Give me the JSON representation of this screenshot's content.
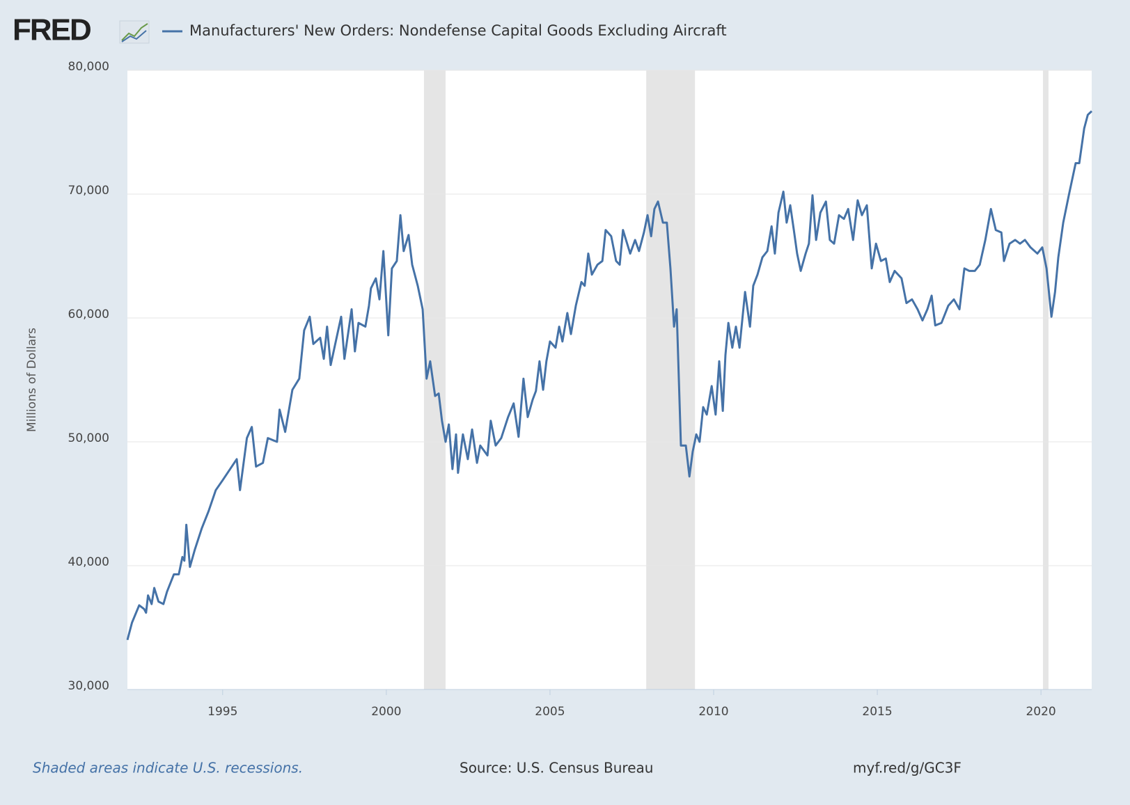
{
  "chart_data": {
    "type": "line",
    "logo": "FRED",
    "y_label": "Millions of Dollars",
    "note": "Shaded areas indicate U.S. recessions.",
    "source": "Source: U.S. Census Bureau",
    "url": "myf.red/g/GC3F",
    "grid": true,
    "xlim": [
      1992.09,
      2021.55
    ],
    "xticks": [
      1995,
      2000,
      2005,
      2010,
      2015,
      2020
    ],
    "ylim": [
      30000,
      80000
    ],
    "yticks": [
      {
        "value": 30000,
        "label": "30,000"
      },
      {
        "value": 40000,
        "label": "40,000"
      },
      {
        "value": 50000,
        "label": "50,000"
      },
      {
        "value": 60000,
        "label": "60,000"
      },
      {
        "value": 70000,
        "label": "70,000"
      },
      {
        "value": 80000,
        "label": "80,000"
      }
    ],
    "recessions": [
      [
        2001.15,
        2001.81
      ],
      [
        2007.94,
        2009.43
      ],
      [
        2020.06,
        2020.23
      ]
    ],
    "recession_color": "#e5e5e5",
    "series": [
      {
        "name": "Manufacturers' New Orders: Nondefense Capital Goods Excluding Aircraft",
        "color": "#4572a7",
        "x": [
          1992.09,
          1992.23,
          1992.45,
          1992.6,
          1992.66,
          1992.72,
          1992.83,
          1992.91,
          1993.04,
          1993.19,
          1993.3,
          1993.51,
          1993.66,
          1993.77,
          1993.83,
          1993.89,
          1994.0,
          1994.15,
          1994.36,
          1994.57,
          1994.79,
          1995.0,
          1995.43,
          1995.53,
          1995.74,
          1995.89,
          1996.02,
          1996.23,
          1996.38,
          1996.66,
          1996.74,
          1996.91,
          1997.13,
          1997.34,
          1997.49,
          1997.66,
          1997.77,
          1997.98,
          1998.09,
          1998.19,
          1998.3,
          1998.62,
          1998.72,
          1998.94,
          1999.04,
          1999.15,
          1999.36,
          1999.47,
          1999.53,
          1999.68,
          1999.79,
          1999.91,
          2000.06,
          2000.17,
          2000.32,
          2000.43,
          2000.53,
          2000.68,
          2000.79,
          2000.96,
          2001.11,
          2001.23,
          2001.34,
          2001.49,
          2001.6,
          2001.7,
          2001.81,
          2001.91,
          2002.02,
          2002.13,
          2002.19,
          2002.34,
          2002.49,
          2002.62,
          2002.77,
          2002.87,
          2003.09,
          2003.19,
          2003.34,
          2003.51,
          2003.72,
          2003.89,
          2004.04,
          2004.19,
          2004.32,
          2004.47,
          2004.57,
          2004.68,
          2004.79,
          2004.89,
          2005.0,
          2005.17,
          2005.28,
          2005.38,
          2005.53,
          2005.64,
          2005.79,
          2005.96,
          2006.06,
          2006.17,
          2006.28,
          2006.45,
          2006.6,
          2006.7,
          2006.87,
          2007.02,
          2007.13,
          2007.23,
          2007.45,
          2007.6,
          2007.72,
          2007.87,
          2007.98,
          2008.09,
          2008.19,
          2008.3,
          2008.45,
          2008.57,
          2008.68,
          2008.79,
          2008.87,
          2009.0,
          2009.15,
          2009.26,
          2009.36,
          2009.47,
          2009.57,
          2009.68,
          2009.79,
          2009.94,
          2010.06,
          2010.17,
          2010.28,
          2010.36,
          2010.45,
          2010.57,
          2010.68,
          2010.79,
          2010.96,
          2011.11,
          2011.21,
          2011.34,
          2011.49,
          2011.64,
          2011.77,
          2011.87,
          2011.98,
          2012.13,
          2012.23,
          2012.34,
          2012.45,
          2012.55,
          2012.66,
          2012.81,
          2012.91,
          2013.02,
          2013.13,
          2013.26,
          2013.43,
          2013.55,
          2013.68,
          2013.83,
          2013.98,
          2014.11,
          2014.26,
          2014.4,
          2014.53,
          2014.68,
          2014.83,
          2014.96,
          2015.11,
          2015.26,
          2015.38,
          2015.53,
          2015.74,
          2015.89,
          2016.06,
          2016.23,
          2016.38,
          2016.53,
          2016.66,
          2016.77,
          2016.96,
          2017.17,
          2017.34,
          2017.51,
          2017.66,
          2017.81,
          2017.98,
          2018.13,
          2018.3,
          2018.47,
          2018.62,
          2018.79,
          2018.87,
          2019.04,
          2019.21,
          2019.36,
          2019.51,
          2019.68,
          2019.89,
          2020.04,
          2020.17,
          2020.32,
          2020.43,
          2020.53,
          2020.68,
          2020.85,
          2021.06,
          2021.17,
          2021.32,
          2021.43,
          2021.55
        ],
        "values": [
          34000,
          35400,
          36800,
          36500,
          36200,
          37600,
          36900,
          38200,
          37100,
          36900,
          37900,
          39300,
          39300,
          40700,
          40400,
          43300,
          39900,
          41300,
          43000,
          44400,
          46100,
          46900,
          48600,
          46100,
          50300,
          51200,
          48000,
          48300,
          50300,
          50000,
          52600,
          50800,
          54200,
          55100,
          59000,
          60100,
          57900,
          58400,
          56700,
          59300,
          56200,
          60100,
          56700,
          60700,
          57300,
          59600,
          59300,
          61000,
          62400,
          63200,
          61500,
          65400,
          58600,
          64000,
          64600,
          68300,
          65400,
          66700,
          64300,
          62600,
          60700,
          55100,
          56500,
          53700,
          53900,
          51700,
          50000,
          51400,
          47800,
          50600,
          47500,
          50600,
          48600,
          51000,
          48300,
          49700,
          48900,
          51700,
          49700,
          50300,
          52000,
          53100,
          50400,
          55100,
          52000,
          53400,
          54100,
          56500,
          54200,
          56500,
          58100,
          57600,
          59300,
          58100,
          60400,
          58700,
          61000,
          62900,
          62600,
          65200,
          63500,
          64300,
          64600,
          67100,
          66600,
          64600,
          64300,
          67100,
          65200,
          66300,
          65400,
          66900,
          68300,
          66600,
          68800,
          69400,
          67700,
          67700,
          64000,
          59300,
          60700,
          49700,
          49700,
          47200,
          49200,
          50600,
          50000,
          52800,
          52200,
          54500,
          52200,
          56500,
          52500,
          57000,
          59600,
          57600,
          59300,
          57600,
          62100,
          59300,
          62600,
          63500,
          64900,
          65400,
          67400,
          65200,
          68500,
          70200,
          67700,
          69100,
          67100,
          65200,
          63800,
          65200,
          66000,
          69900,
          66300,
          68500,
          69400,
          66300,
          66000,
          68300,
          68000,
          68800,
          66300,
          69500,
          68300,
          69100,
          64000,
          66000,
          64600,
          64800,
          62900,
          63800,
          63200,
          61200,
          61500,
          60700,
          59800,
          60700,
          61800,
          59400,
          59600,
          61000,
          61500,
          60700,
          64000,
          63800,
          63800,
          64300,
          66300,
          68800,
          67100,
          66900,
          64600,
          66000,
          66300,
          66000,
          66300,
          65700,
          65200,
          65700,
          64000,
          60100,
          62100,
          64900,
          67700,
          69900,
          72500,
          72500,
          75300,
          76400,
          76700
        ]
      }
    ]
  }
}
